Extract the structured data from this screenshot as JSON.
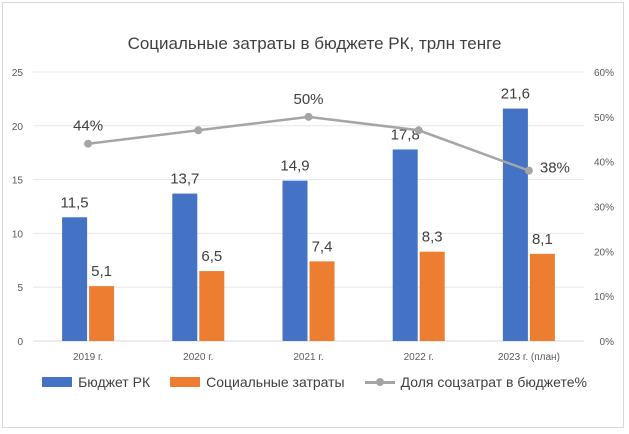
{
  "chart_data": {
    "type": "bar",
    "title": "Социальные затраты в бюджете РК, трлн тенге",
    "categories": [
      "2019 г.",
      "2020 г.",
      "2021 г.",
      "2022 г.",
      "2023 г. (план)"
    ],
    "series": [
      {
        "name": "Бюджет РК",
        "type": "bar",
        "axis": "left",
        "color": "#4472c4",
        "values": [
          11.5,
          13.7,
          14.9,
          17.8,
          21.6
        ],
        "labels": [
          "11,5",
          "13,7",
          "14,9",
          "17,8",
          "21,6"
        ]
      },
      {
        "name": "Социальные затраты",
        "type": "bar",
        "axis": "left",
        "color": "#ed7d31",
        "values": [
          5.1,
          6.5,
          7.4,
          8.3,
          8.1
        ],
        "labels": [
          "5,1",
          "6,5",
          "7,4",
          "8,3",
          "8,1"
        ]
      },
      {
        "name": "Доля соцзатрат в бюджете%",
        "type": "line",
        "axis": "right",
        "color": "#a5a5a5",
        "values": [
          44,
          47,
          50,
          47,
          38
        ],
        "labels": [
          "44%",
          "",
          "50%",
          "",
          "38%"
        ]
      }
    ],
    "y_left": {
      "range": [
        0,
        25
      ],
      "ticks": [
        "0",
        "5",
        "10",
        "15",
        "20",
        "25"
      ]
    },
    "y_right": {
      "range": [
        0,
        60
      ],
      "ticks": [
        "0%",
        "10%",
        "20%",
        "30%",
        "40%",
        "50%",
        "60%"
      ]
    },
    "grid": true,
    "legend": "bottom"
  }
}
